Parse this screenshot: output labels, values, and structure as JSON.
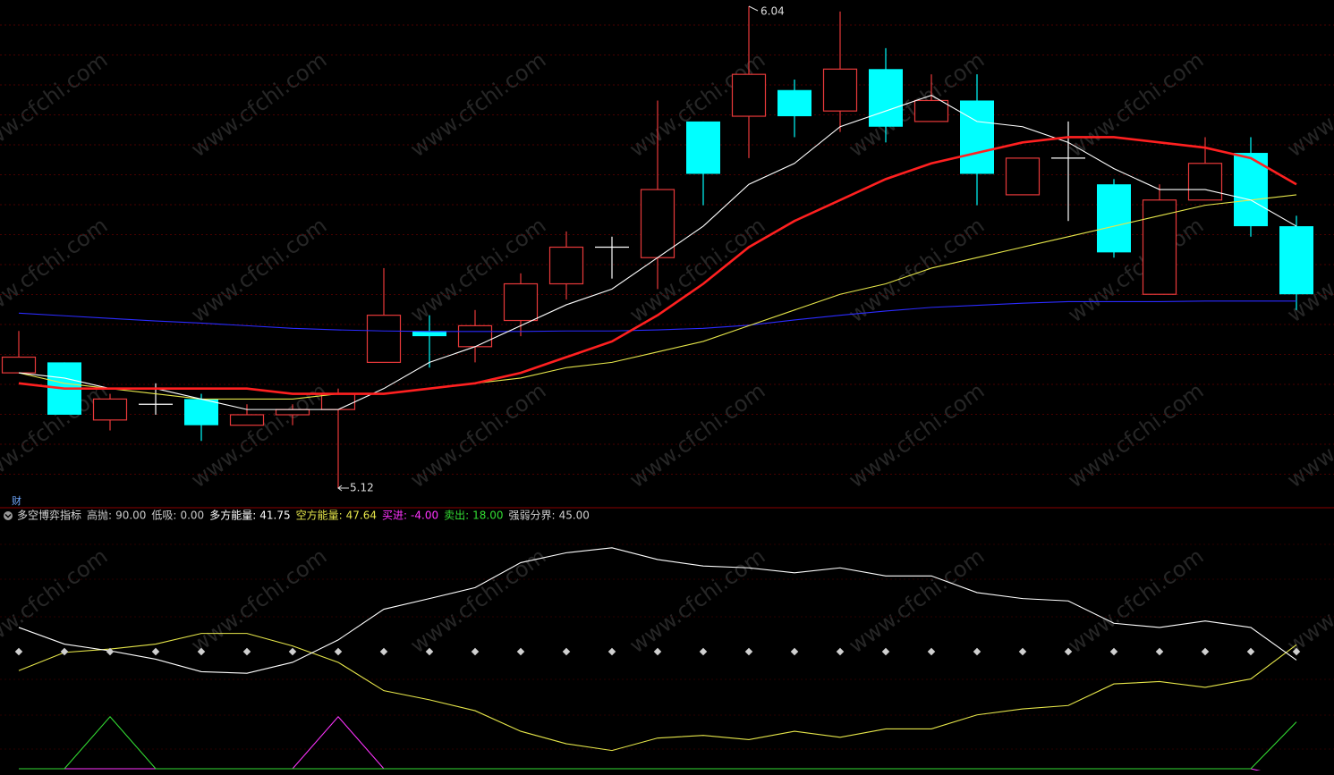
{
  "chart_data": {
    "type": "candlestick",
    "open": [
      5.34,
      5.36,
      5.25,
      5.28,
      5.29,
      5.24,
      5.26,
      5.27,
      5.36,
      5.42,
      5.39,
      5.44,
      5.51,
      5.58,
      5.56,
      5.82,
      5.83,
      5.88,
      5.84,
      5.92,
      5.82,
      5.86,
      5.68,
      5.75,
      5.7,
      5.49,
      5.67,
      5.76,
      5.62
    ],
    "high": [
      5.42,
      5.36,
      5.3,
      5.32,
      5.3,
      5.28,
      5.28,
      5.31,
      5.54,
      5.45,
      5.46,
      5.53,
      5.61,
      5.6,
      5.86,
      5.82,
      6.04,
      5.9,
      6.03,
      5.96,
      5.91,
      5.91,
      5.75,
      5.82,
      5.71,
      5.7,
      5.79,
      5.79,
      5.64
    ],
    "low": [
      5.34,
      5.26,
      5.23,
      5.26,
      5.21,
      5.24,
      5.24,
      5.12,
      5.36,
      5.35,
      5.36,
      5.41,
      5.48,
      5.52,
      5.5,
      5.66,
      5.75,
      5.79,
      5.8,
      5.78,
      5.82,
      5.66,
      5.68,
      5.63,
      5.56,
      5.49,
      5.67,
      5.6,
      5.46
    ],
    "close": [
      5.37,
      5.26,
      5.29,
      5.28,
      5.24,
      5.26,
      5.27,
      5.3,
      5.45,
      5.41,
      5.43,
      5.51,
      5.58,
      5.58,
      5.69,
      5.72,
      5.91,
      5.83,
      5.92,
      5.81,
      5.86,
      5.72,
      5.75,
      5.75,
      5.57,
      5.67,
      5.74,
      5.62,
      5.49
    ],
    "up_color": "#e8393a",
    "down_color": "#00ffff",
    "doji_color": "#ffffff",
    "moving_averages": [
      {
        "color": "#2b2bff",
        "values": [
          5.454,
          5.449,
          5.444,
          5.439,
          5.435,
          5.43,
          5.425,
          5.422,
          5.42,
          5.419,
          5.419,
          5.419,
          5.42,
          5.42,
          5.422,
          5.425,
          5.431,
          5.441,
          5.45,
          5.458,
          5.465,
          5.469,
          5.473,
          5.476,
          5.476,
          5.476,
          5.477,
          5.477,
          5.477
        ]
      },
      {
        "color": "#e6e64a",
        "values": [
          5.34,
          5.32,
          5.31,
          5.3,
          5.29,
          5.29,
          5.29,
          5.3,
          5.3,
          5.31,
          5.32,
          5.33,
          5.35,
          5.36,
          5.38,
          5.4,
          5.43,
          5.46,
          5.49,
          5.51,
          5.54,
          5.56,
          5.58,
          5.6,
          5.62,
          5.64,
          5.66,
          5.67,
          5.68
        ]
      },
      {
        "color": "#ffffff",
        "values": [
          5.34,
          5.33,
          5.31,
          5.31,
          5.29,
          5.27,
          5.27,
          5.27,
          5.31,
          5.36,
          5.39,
          5.43,
          5.47,
          5.5,
          5.56,
          5.62,
          5.7,
          5.74,
          5.81,
          5.84,
          5.87,
          5.82,
          5.81,
          5.78,
          5.73,
          5.69,
          5.69,
          5.67,
          5.62
        ]
      },
      {
        "color": "#ff2020",
        "values": [
          5.32,
          5.31,
          5.31,
          5.31,
          5.31,
          5.31,
          5.3,
          5.3,
          5.3,
          5.31,
          5.32,
          5.34,
          5.37,
          5.4,
          5.45,
          5.51,
          5.58,
          5.63,
          5.67,
          5.71,
          5.74,
          5.76,
          5.78,
          5.79,
          5.79,
          5.78,
          5.77,
          5.75,
          5.7
        ]
      }
    ],
    "badge": "财",
    "watermark": "www.cfchi.com",
    "indicator": {
      "title": "多空博弈指标",
      "params": [
        {
          "name": "高抛:",
          "value": {
            "value": 90,
            "label": "90.00"
          },
          "color": "#c8c8c8"
        },
        {
          "name": "低吸:",
          "value": {
            "value": 0,
            "label": "0.00"
          },
          "color": "#c8c8c8"
        },
        {
          "name": "多方能量:",
          "value": 41.75,
          "color": "#ffffff",
          "values": [
            54.3,
            47.9,
            45.3,
            42.1,
            37.3,
            36.7,
            40.9,
            49.5,
            61.3,
            65.4,
            69.6,
            79.2,
            83.0,
            84.9,
            80.4,
            77.9,
            77.2,
            75.3,
            77.2,
            74.1,
            74.1,
            67.7,
            65.4,
            64.5,
            55.9,
            54.3,
            56.8,
            54.3,
            41.75
          ]
        },
        {
          "name": "空方能量:",
          "value": 47.64,
          "color": "#e6e64a",
          "values": [
            37.7,
            44.7,
            46.0,
            47.9,
            52.0,
            52.0,
            47.2,
            40.9,
            30.0,
            26.5,
            22.3,
            14.4,
            9.6,
            7.0,
            11.8,
            12.8,
            11.2,
            14.4,
            12.1,
            15.3,
            15.3,
            20.7,
            23.0,
            24.3,
            32.6,
            33.5,
            31.3,
            34.5,
            47.64
          ]
        },
        {
          "name": "买进:",
          "value": {
            "value": -4,
            "label": "-4.00"
          },
          "color": "#ff33ff",
          "values": [
            0,
            0,
            0,
            0,
            0,
            0,
            0,
            20,
            0,
            0,
            0,
            0,
            0,
            0,
            0,
            0,
            0,
            0,
            0,
            0,
            0,
            0,
            0,
            0,
            0,
            0,
            0,
            0,
            -4
          ]
        },
        {
          "name": "卖出:",
          "value": {
            "value": 18,
            "label": "18.00"
          },
          "color": "#33dd33",
          "values": [
            0,
            0,
            20,
            0,
            0,
            0,
            0,
            0,
            0,
            0,
            0,
            0,
            0,
            0,
            0,
            0,
            0,
            0,
            0,
            0,
            0,
            0,
            0,
            0,
            0,
            0,
            0,
            0,
            18
          ]
        },
        {
          "name": "强弱分界:",
          "value": {
            "value": 45,
            "label": "45.00"
          },
          "color": "#d0d0d0"
        }
      ]
    }
  }
}
